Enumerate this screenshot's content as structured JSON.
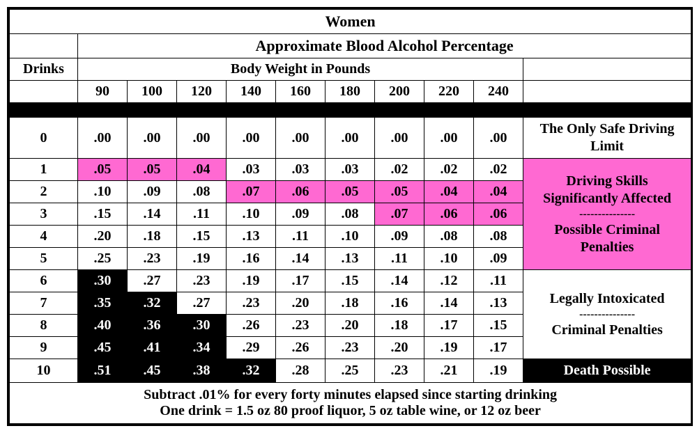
{
  "title": "Women",
  "subtitle": "Approximate Blood Alcohol Percentage",
  "row_label": "Drinks",
  "weight_label": "Body Weight in Pounds",
  "weights": [
    "90",
    "100",
    "120",
    "140",
    "160",
    "180",
    "200",
    "220",
    "240"
  ],
  "colors": {
    "white": "#ffffff",
    "pink": "#ff69d2",
    "black": "#000000",
    "black_text": "#ffffff"
  },
  "descriptions": {
    "safe": "The Only Safe Driving Limit",
    "affected_1": "Driving Skills Significantly Affected",
    "affected_2": "Possible Criminal Penalties",
    "legal_1": "Legally Intoxicated",
    "legal_2": "Criminal Penalties",
    "death": "Death Possible",
    "dash": "---------------"
  },
  "rows": [
    {
      "d": "0",
      "v": [
        ".00",
        ".00",
        ".00",
        ".00",
        ".00",
        ".00",
        ".00",
        ".00",
        ".00"
      ],
      "c": [
        "w",
        "w",
        "w",
        "w",
        "w",
        "w",
        "w",
        "w",
        "w"
      ]
    },
    {
      "d": "1",
      "v": [
        ".05",
        ".05",
        ".04",
        ".03",
        ".03",
        ".03",
        ".02",
        ".02",
        ".02"
      ],
      "c": [
        "p",
        "p",
        "p",
        "w",
        "w",
        "w",
        "w",
        "w",
        "w"
      ]
    },
    {
      "d": "2",
      "v": [
        ".10",
        ".09",
        ".08",
        ".07",
        ".06",
        ".05",
        ".05",
        ".04",
        ".04"
      ],
      "c": [
        "w",
        "w",
        "w",
        "p",
        "p",
        "p",
        "p",
        "p",
        "p"
      ]
    },
    {
      "d": "3",
      "v": [
        ".15",
        ".14",
        ".11",
        ".10",
        ".09",
        ".08",
        ".07",
        ".06",
        ".06"
      ],
      "c": [
        "w",
        "w",
        "w",
        "w",
        "w",
        "w",
        "p",
        "p",
        "p"
      ]
    },
    {
      "d": "4",
      "v": [
        ".20",
        ".18",
        ".15",
        ".13",
        ".11",
        ".10",
        ".09",
        ".08",
        ".08"
      ],
      "c": [
        "w",
        "w",
        "w",
        "w",
        "w",
        "w",
        "w",
        "w",
        "w"
      ]
    },
    {
      "d": "5",
      "v": [
        ".25",
        ".23",
        ".19",
        ".16",
        ".14",
        ".13",
        ".11",
        ".10",
        ".09"
      ],
      "c": [
        "w",
        "w",
        "w",
        "w",
        "w",
        "w",
        "w",
        "w",
        "w"
      ]
    },
    {
      "d": "6",
      "v": [
        ".30",
        ".27",
        ".23",
        ".19",
        ".17",
        ".15",
        ".14",
        ".12",
        ".11"
      ],
      "c": [
        "b",
        "w",
        "w",
        "w",
        "w",
        "w",
        "w",
        "w",
        "w"
      ]
    },
    {
      "d": "7",
      "v": [
        ".35",
        ".32",
        ".27",
        ".23",
        ".20",
        ".18",
        ".16",
        ".14",
        ".13"
      ],
      "c": [
        "b",
        "b",
        "w",
        "w",
        "w",
        "w",
        "w",
        "w",
        "w"
      ]
    },
    {
      "d": "8",
      "v": [
        ".40",
        ".36",
        ".30",
        ".26",
        ".23",
        ".20",
        ".18",
        ".17",
        ".15"
      ],
      "c": [
        "b",
        "b",
        "b",
        "w",
        "w",
        "w",
        "w",
        "w",
        "w"
      ]
    },
    {
      "d": "9",
      "v": [
        ".45",
        ".41",
        ".34",
        ".29",
        ".26",
        ".23",
        ".20",
        ".19",
        ".17"
      ],
      "c": [
        "b",
        "b",
        "b",
        "w",
        "w",
        "w",
        "w",
        "w",
        "w"
      ]
    },
    {
      "d": "10",
      "v": [
        ".51",
        ".45",
        ".38",
        ".32",
        ".28",
        ".25",
        ".23",
        ".21",
        ".19"
      ],
      "c": [
        "b",
        "b",
        "b",
        "b",
        "w",
        "w",
        "w",
        "w",
        "w"
      ]
    }
  ],
  "footer_1": "Subtract .01% for every forty minutes elapsed since starting drinking",
  "footer_2": "One drink = 1.5 oz 80 proof liquor, 5 oz table wine, or 12 oz beer"
}
